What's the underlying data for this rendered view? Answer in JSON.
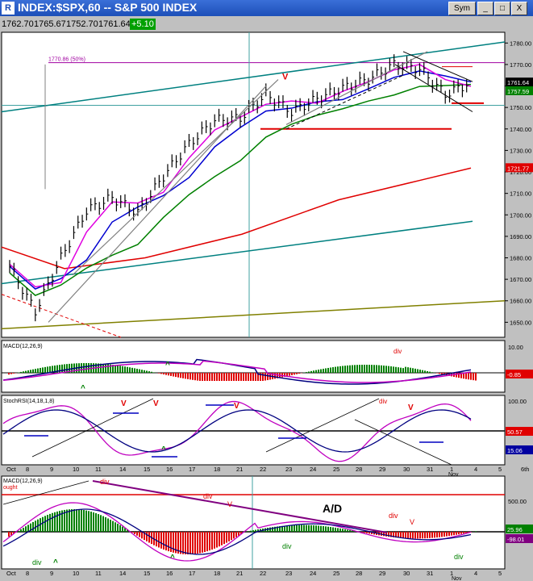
{
  "window": {
    "icon_label": "R",
    "title": "INDEX:$SPX,60 -- S&P 500 INDEX",
    "buttons": [
      "Sym",
      "_",
      "□",
      "X"
    ]
  },
  "quote": {
    "open": "1762.70",
    "high": "1765.67",
    "low": "1752.70",
    "close": "1761.64",
    "change": "+5.10"
  },
  "colors": {
    "price_bars": "#000000",
    "ma_magenta": "#e000e0",
    "ma_blue": "#0000d0",
    "ma_green": "#008000",
    "ma_red": "#e00000",
    "ma_teal": "#008080",
    "ma_olive": "#808000",
    "trend_gray": "#808080",
    "macd_hist_up": "#008000",
    "macd_hist_down": "#e00000"
  },
  "panels": [
    {
      "id": "price",
      "ylim": [
        1643,
        1785
      ],
      "y_ticks": [
        "1780.00",
        "1770.00",
        "1760.00",
        "1750.00",
        "1740.00",
        "1730.00",
        "1720.00",
        "1710.00",
        "1700.00",
        "1690.00",
        "1680.00",
        "1670.00",
        "1660.00",
        "1650.00"
      ],
      "fib_label": "1770.86 (50%)",
      "value_badges": [
        "1761.64",
        "1757.59",
        "1721.77"
      ],
      "annotations": [
        "V"
      ]
    },
    {
      "id": "macd",
      "label": "MACD(12,26,9)",
      "y_ticks": [
        "10.00",
        "0.00"
      ],
      "value_badges": [
        "-0.85"
      ],
      "annotations": [
        "div",
        "^",
        "^"
      ]
    },
    {
      "id": "stochrsi",
      "label": "StochRSI(14,18,1,8)",
      "y_ticks": [
        "100.00",
        "50.00",
        "0.00"
      ],
      "value_badges": [
        "50.57",
        "15.06"
      ],
      "annotations": [
        "V",
        "V",
        "V",
        "^",
        "div",
        "V"
      ]
    },
    {
      "id": "ad",
      "label": "MACD(12,26,9)",
      "sublabel": "ought",
      "center_label": "A/D",
      "y_ticks": [
        "500.00",
        "0.00"
      ],
      "value_badges": [
        "25.96",
        "-98.01"
      ],
      "annotations": [
        "div",
        "div",
        "V",
        "div",
        "V",
        "div",
        "div",
        "div",
        "^",
        "^"
      ]
    }
  ],
  "x_axis": {
    "labels": [
      "Oct",
      "8",
      "9",
      "10",
      "11",
      "14",
      "15",
      "16",
      "17",
      "18",
      "21",
      "22",
      "23",
      "24",
      "25",
      "28",
      "29",
      "30",
      "31",
      "1",
      "4",
      "5",
      "6th"
    ],
    "sub_label": "Nov"
  },
  "chart_data": [
    {
      "type": "line",
      "title": "INDEX:$SPX,60 -- S&P 500 INDEX",
      "x": [
        "Oct 8",
        "Oct 9",
        "Oct 10",
        "Oct 11",
        "Oct 14",
        "Oct 15",
        "Oct 16",
        "Oct 17",
        "Oct 18",
        "Oct 21",
        "Oct 22",
        "Oct 23",
        "Oct 24",
        "Oct 25",
        "Oct 28",
        "Oct 29",
        "Oct 30",
        "Oct 31",
        "Nov 1"
      ],
      "series": [
        {
          "values": [
            1676,
            1655,
            1680,
            1702,
            1708,
            1701,
            1718,
            1733,
            1744,
            1745,
            1756,
            1748,
            1754,
            1759,
            1763,
            1770,
            1768,
            1756,
            1761.64
          ]
        }
      ],
      "ylim": [
        1643,
        1785
      ]
    }
  ]
}
